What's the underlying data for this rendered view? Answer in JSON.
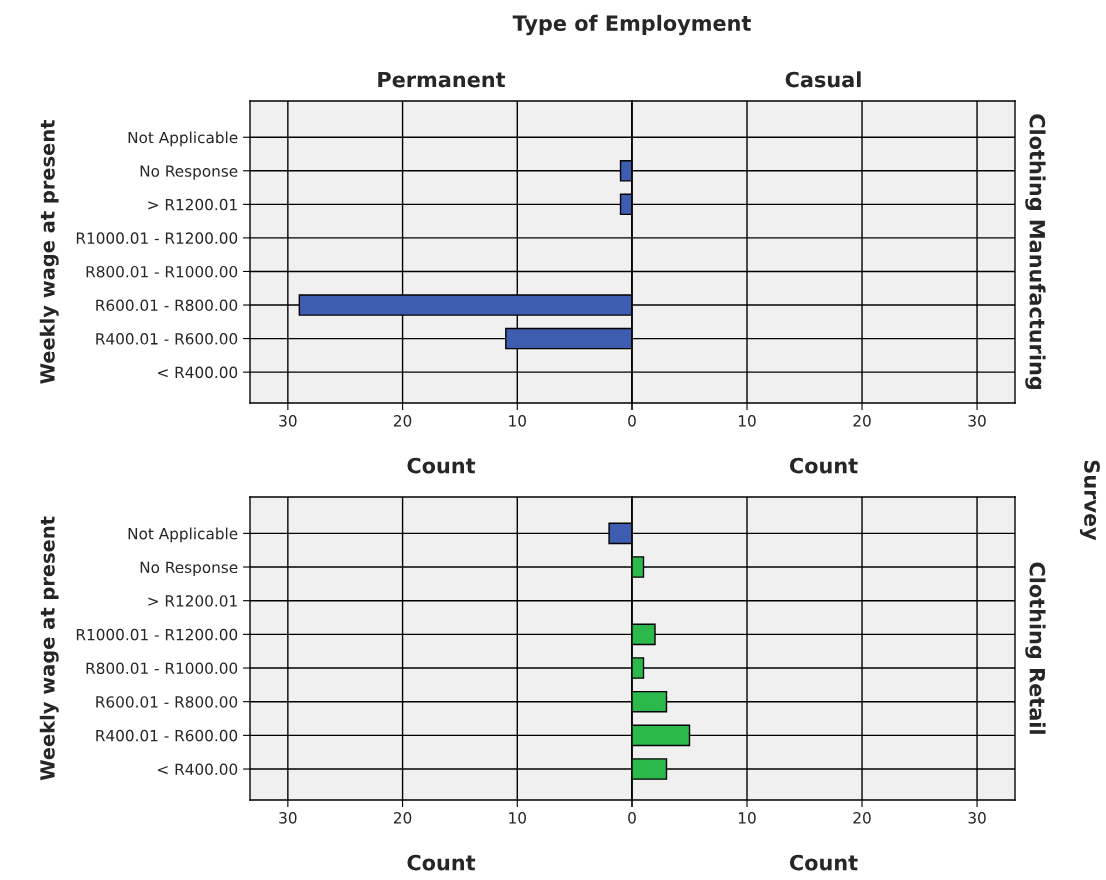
{
  "chart_data": [
    {
      "type": "bar",
      "orientation": "horizontal",
      "title": "Permanent",
      "xlabel": "Count",
      "ylabel": "Weekly wage at present",
      "categories": [
        "Not Applicable",
        "No Response",
        "> R1200.01",
        "R1000.01 - R1200.00",
        "R800.01 - R1000.00",
        "R600.01 - R800.00",
        "R400.01 - R600.00",
        "< R400.00"
      ],
      "series": [
        {
          "color": "#3f5db0",
          "values": [
            null,
            1,
            1,
            null,
            null,
            29,
            11,
            null
          ]
        }
      ],
      "xlim": [
        33.3,
        0
      ],
      "xticks": [
        30,
        20,
        10,
        0
      ],
      "grid": true,
      "annotations": [
        "Type of Employment",
        "Survey"
      ]
    },
    {
      "type": "bar",
      "orientation": "horizontal",
      "title": "Casual",
      "xlabel": "Count",
      "y2label": "Clothing Manufacturing",
      "categories": [
        null,
        null,
        null,
        null,
        null,
        null,
        null,
        null
      ],
      "series": [
        {
          "color": "#2db84b",
          "values": [
            null,
            null,
            null,
            null,
            null,
            null,
            null,
            null
          ]
        }
      ],
      "xlim": [
        0,
        33.3
      ],
      "xticks": [
        {
          "value": 0,
          "label": null
        },
        10,
        20,
        30
      ],
      "grid": true,
      "tick_labels": "x"
    },
    {
      "type": "bar",
      "orientation": "horizontal",
      "xlabel": "Count",
      "ylabel": "Weekly wage at present",
      "categories": [
        "Not Applicable",
        "No Response",
        "> R1200.01",
        "R1000.01 - R1200.00",
        "R800.01 - R1000.00",
        "R600.01 - R800.00",
        "R400.01 - R600.00",
        "< R400.00"
      ],
      "series": [
        {
          "color": "#3f5db0",
          "values": [
            2,
            null,
            null,
            null,
            null,
            null,
            null,
            null
          ]
        }
      ],
      "xlim": [
        33.3,
        0
      ],
      "xticks": [
        30,
        20,
        10,
        0
      ],
      "grid": true
    },
    {
      "type": "bar",
      "orientation": "horizontal",
      "xlabel": "Count",
      "y2label": "Clothing Retail",
      "categories": [
        null,
        null,
        null,
        null,
        null,
        null,
        null,
        null
      ],
      "series": [
        {
          "color": "#2db84b",
          "values": [
            null,
            1,
            null,
            2,
            1,
            3,
            5,
            3
          ]
        }
      ],
      "xlim": [
        0,
        33.3
      ],
      "xticks": [
        {
          "value": 0,
          "label": null
        },
        10,
        20,
        30
      ],
      "grid": true,
      "tick_labels": "x"
    }
  ]
}
